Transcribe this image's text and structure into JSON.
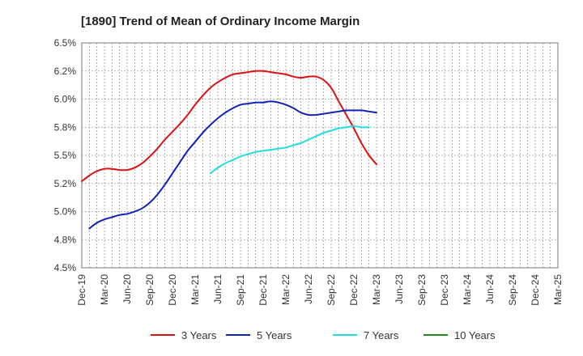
{
  "chart_data": {
    "type": "line",
    "title": "[1890]  Trend of Mean of Ordinary Income Margin",
    "xlabel": "",
    "ylabel": "",
    "ylim": [
      4.5,
      6.5
    ],
    "grid": true,
    "legend_position": "bottom",
    "x_ticks": [
      "Dec-19",
      "Mar-20",
      "Jun-20",
      "Sep-20",
      "Dec-20",
      "Mar-21",
      "Jun-21",
      "Sep-21",
      "Dec-21",
      "Mar-22",
      "Jun-22",
      "Sep-22",
      "Dec-22",
      "Mar-23",
      "Jun-23",
      "Sep-23",
      "Dec-23",
      "Mar-24",
      "Jun-24",
      "Sep-24",
      "Dec-24",
      "Mar-25"
    ],
    "y_ticks": [
      {
        "value": 4.5,
        "label": "4.5%"
      },
      {
        "value": 4.75,
        "label": "4.8%"
      },
      {
        "value": 5.0,
        "label": "5.0%"
      },
      {
        "value": 5.25,
        "label": "5.2%"
      },
      {
        "value": 5.5,
        "label": "5.5%"
      },
      {
        "value": 5.75,
        "label": "5.8%"
      },
      {
        "value": 6.0,
        "label": "6.0%"
      },
      {
        "value": 6.25,
        "label": "6.2%"
      },
      {
        "value": 6.5,
        "label": "6.5%"
      }
    ],
    "series": [
      {
        "name": "3 Years",
        "color": "#dd1111",
        "start_index": 0,
        "values": [
          5.27,
          5.32,
          5.36,
          5.38,
          5.38,
          5.37,
          5.37,
          5.39,
          5.43,
          5.49,
          5.56,
          5.64,
          5.71,
          5.78,
          5.86,
          5.95,
          6.03,
          6.1,
          6.15,
          6.19,
          6.22,
          6.23,
          6.24,
          6.25,
          6.25,
          6.24,
          6.23,
          6.22,
          6.2,
          6.19,
          6.2,
          6.2,
          6.17,
          6.1,
          5.98,
          5.86,
          5.74,
          5.61,
          5.5,
          5.42
        ]
      },
      {
        "name": "5 Years",
        "color": "#1122bb",
        "start_index": 1,
        "values": [
          4.85,
          4.9,
          4.93,
          4.95,
          4.97,
          4.98,
          5.0,
          5.03,
          5.08,
          5.15,
          5.24,
          5.34,
          5.44,
          5.54,
          5.62,
          5.7,
          5.77,
          5.83,
          5.88,
          5.92,
          5.95,
          5.96,
          5.97,
          5.97,
          5.98,
          5.97,
          5.95,
          5.92,
          5.88,
          5.86,
          5.86,
          5.87,
          5.88,
          5.89,
          5.9,
          5.9,
          5.9,
          5.89,
          5.88
        ]
      },
      {
        "name": "7 Years",
        "color": "#22dddd",
        "start_index": 17,
        "values": [
          5.34,
          5.39,
          5.43,
          5.46,
          5.49,
          5.51,
          5.53,
          5.54,
          5.55,
          5.56,
          5.57,
          5.59,
          5.61,
          5.64,
          5.67,
          5.7,
          5.72,
          5.74,
          5.75,
          5.76,
          5.75,
          5.75
        ]
      },
      {
        "name": "10 Years",
        "color": "#228822",
        "start_index": 0,
        "values": []
      }
    ]
  }
}
